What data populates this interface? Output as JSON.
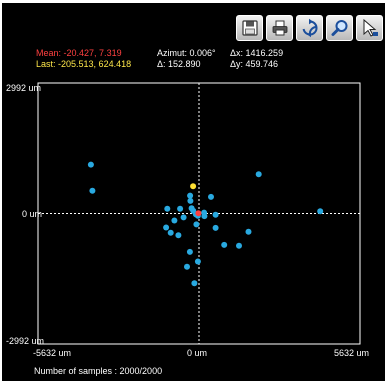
{
  "toolbar": {
    "buttons": [
      {
        "icon": "save-icon"
      },
      {
        "icon": "printer-icon"
      },
      {
        "icon": "refresh-icon"
      },
      {
        "icon": "zoom-icon"
      },
      {
        "icon": "pointer-icon"
      }
    ]
  },
  "stats": {
    "mean_label": "Mean:",
    "mean_value": "-20.427, 7.319",
    "last_label": "Last:",
    "last_value": "-205.513, 624.418",
    "azimut_label": "Azimut:",
    "azimut_value": "0.006°",
    "delta_label": "Δ:",
    "delta_value": "152.890",
    "dx_label": "Δx:",
    "dx_value": "1416.259",
    "dy_label": "Δy:",
    "dy_value": "459.746"
  },
  "colors": {
    "background": "#000000",
    "frame": "#ffffff",
    "points": "#29a9e0",
    "last_point": "#ffe033",
    "mean_point": "#ff4040",
    "mean_text": "#ff4040",
    "last_text": "#ffe84a",
    "text": "#ffffff"
  },
  "footer": {
    "samples_label": "Number of samples : 2000/2000"
  },
  "chart_data": {
    "type": "scatter",
    "xlim": [
      -5632,
      5632
    ],
    "ylim": [
      -2992,
      2992
    ],
    "x_ticks": [
      "-5632 um",
      "0 um",
      "5632 um"
    ],
    "y_ticks": [
      "2992 um",
      "0 um",
      "-2992 um"
    ],
    "grid": false,
    "crosshair": "dashed lines at x=0 and y=0",
    "series": [
      {
        "points": [
          [
            -3780,
            1120
          ],
          [
            -3730,
            520
          ],
          [
            2090,
            900
          ],
          [
            4240,
            50
          ],
          [
            -1110,
            110
          ],
          [
            -660,
            110
          ],
          [
            -300,
            290
          ],
          [
            -310,
            410
          ],
          [
            420,
            380
          ],
          [
            -260,
            120
          ],
          [
            -110,
            -20
          ],
          [
            -40,
            -50
          ],
          [
            -200,
            60
          ],
          [
            180,
            20
          ],
          [
            -860,
            -160
          ],
          [
            -1150,
            -320
          ],
          [
            -540,
            -90
          ],
          [
            -90,
            -250
          ],
          [
            580,
            -30
          ],
          [
            580,
            -330
          ],
          [
            1730,
            -420
          ],
          [
            -990,
            -440
          ],
          [
            -720,
            -500
          ],
          [
            880,
            -720
          ],
          [
            1400,
            -740
          ],
          [
            -320,
            -880
          ],
          [
            -40,
            -1100
          ],
          [
            -420,
            -1220
          ],
          [
            -160,
            -1600
          ],
          [
            190,
            -60
          ]
        ]
      }
    ],
    "last_point": [
      -205.513,
      624.418
    ],
    "mean_point": [
      -20.427,
      7.319
    ]
  }
}
